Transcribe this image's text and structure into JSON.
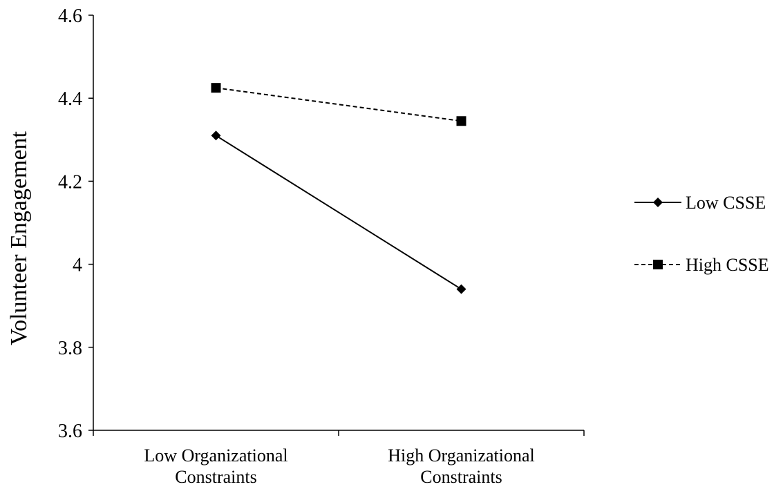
{
  "chart_data": {
    "type": "line",
    "title": "",
    "xlabel": "",
    "ylabel": "Volunteer Engagement",
    "categories": [
      [
        "Low Organizational",
        "Constraints"
      ],
      [
        "High Organizational",
        "Constraints"
      ]
    ],
    "ylim": [
      3.6,
      4.6
    ],
    "yticks": [
      3.6,
      3.8,
      4,
      4.2,
      4.4,
      4.6
    ],
    "ytick_labels": [
      "3.6",
      "3.8",
      "4",
      "4.2",
      "4.4",
      "4.6"
    ],
    "grid": false,
    "legend_position": "right",
    "series": [
      {
        "name": "Low CSSE",
        "values": [
          4.31,
          3.94
        ],
        "marker": "diamond",
        "line_style": "solid",
        "color": "#000000"
      },
      {
        "name": "High CSSE",
        "values": [
          4.425,
          4.345
        ],
        "marker": "square",
        "line_style": "dashed",
        "color": "#000000"
      }
    ]
  }
}
